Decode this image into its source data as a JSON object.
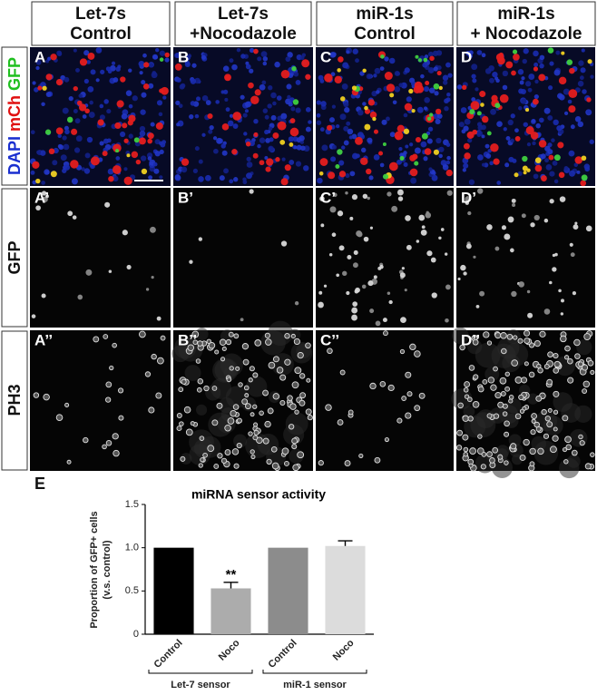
{
  "figure": {
    "columns": [
      [
        "Let-7s",
        "Control"
      ],
      [
        "Let-7s",
        "+Nocodazole"
      ],
      [
        "miR-1s",
        "Control"
      ],
      [
        "miR-1s",
        "+ Nocodazole"
      ]
    ],
    "rows": [
      [
        "DAPI",
        "mCh",
        "GFP"
      ],
      [
        "GFP"
      ],
      [
        "PH3"
      ]
    ],
    "panel_labels": [
      [
        "A",
        "B",
        "C",
        "D"
      ],
      [
        "A’",
        "B’",
        "C’",
        "D’"
      ],
      [
        "A’’",
        "B’’",
        "C’’",
        "D’’"
      ]
    ]
  },
  "chart_data": {
    "type": "bar",
    "panel_label": "E",
    "title": "miRNA sensor activity",
    "y_label": [
      "Proportion of GFP+ cells",
      "(v.s. control)"
    ],
    "categories": [
      "Control",
      "Noco",
      "Control",
      "Noco"
    ],
    "groups": [
      "Let-7 sensor",
      "miR-1 sensor"
    ],
    "values": [
      1.0,
      0.53,
      1.0,
      1.02
    ],
    "errors": [
      0,
      0.07,
      0,
      0.06
    ],
    "colors": [
      "#000000",
      "#acacac",
      "#8c8c8c",
      "#dcdcdc"
    ],
    "annotations": [
      null,
      "**",
      null,
      null
    ],
    "ylim": [
      0,
      1.5
    ],
    "yticks": [
      0,
      0.5,
      {
        "value": 1,
        "label": "1.0"
      },
      1.5
    ],
    "grid": false
  }
}
